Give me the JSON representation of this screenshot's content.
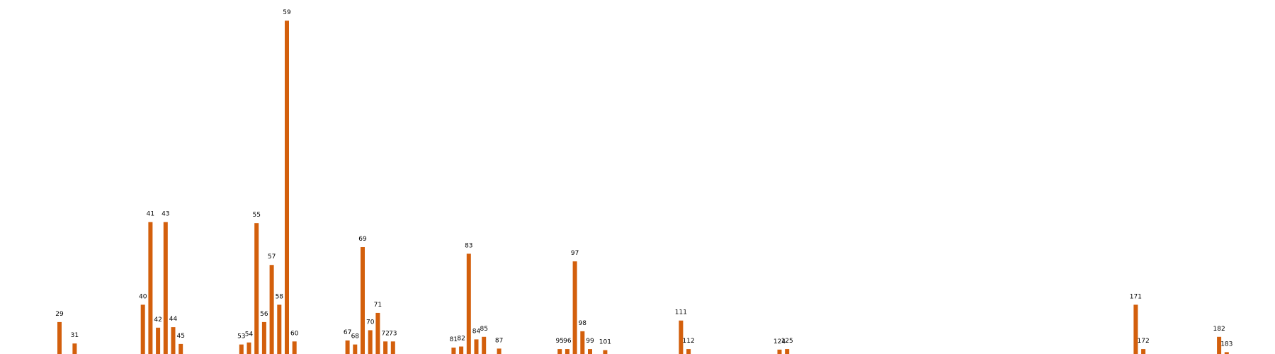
{
  "chart_data": {
    "type": "bar",
    "title": "",
    "xlabel": "",
    "ylabel": "",
    "grid": false,
    "legend": "none",
    "color": "#d35f0c",
    "categories": [
      "29",
      "31",
      "40",
      "41",
      "42",
      "43",
      "44",
      "45",
      "53",
      "54",
      "55",
      "56",
      "57",
      "58",
      "59",
      "60",
      "67",
      "68",
      "69",
      "70",
      "71",
      "72",
      "73",
      "81",
      "82",
      "83",
      "84",
      "85",
      "87",
      "95",
      "96",
      "97",
      "98",
      "99",
      "101",
      "111",
      "112",
      "124",
      "125",
      "171",
      "172",
      "182",
      "183"
    ],
    "values": [
      64,
      22,
      98,
      260,
      53,
      260,
      54,
      21,
      20,
      24,
      258,
      64,
      176,
      98,
      655,
      26,
      28,
      20,
      211,
      48,
      82,
      26,
      26,
      14,
      16,
      198,
      30,
      35,
      12,
      11,
      11,
      183,
      46,
      11,
      9,
      67,
      11,
      10,
      11,
      98,
      11,
      35,
      5
    ],
    "ylim": [
      0,
      665
    ]
  }
}
